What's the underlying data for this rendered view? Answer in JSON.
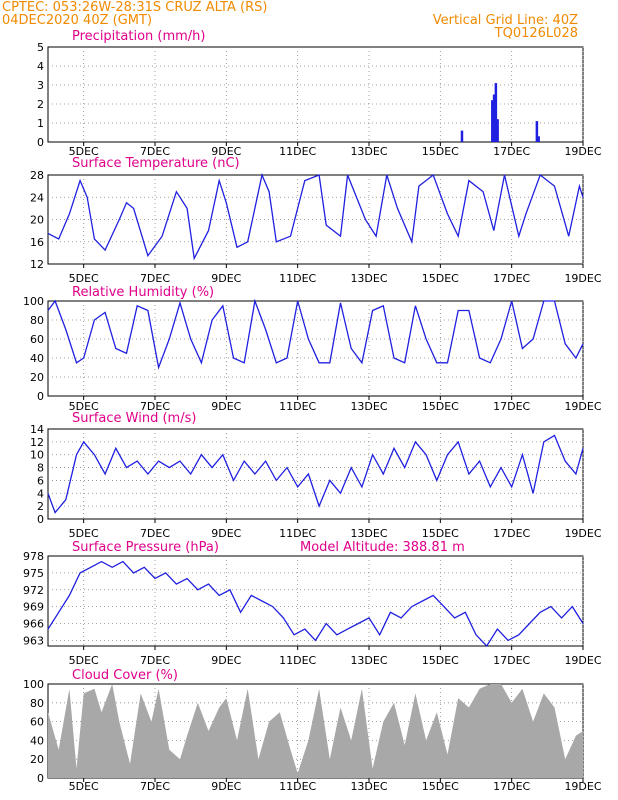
{
  "header": {
    "line1": "CPTEC:   053:26W-28:31S   CRUZ ALTA (RS)",
    "line2": "04DEC2020 40Z (GMT)",
    "right1": "Vertical Grid Line: 40Z",
    "right2": "TQ0126L028"
  },
  "x_tick_labels": [
    "5DEC",
    "7DEC",
    "9DEC",
    "11DEC",
    "13DEC",
    "15DEC",
    "17DEC",
    "19DEC"
  ],
  "chart_data": [
    {
      "type": "bar",
      "title": "Precipitation (mm/h)",
      "ylim": [
        0,
        5
      ],
      "yticks": [
        0,
        1,
        2,
        3,
        4,
        5
      ],
      "x_range_days": [
        4.0,
        19.0
      ],
      "x": [
        15.6,
        16.45,
        16.5,
        16.55,
        16.6,
        17.7,
        17.75
      ],
      "values": [
        0.6,
        2.2,
        2.5,
        3.1,
        1.2,
        1.1,
        0.3
      ],
      "color": "#2020e0"
    },
    {
      "type": "line",
      "title": "Surface Temperature (nC)",
      "ylim": [
        12,
        28
      ],
      "yticks": [
        12,
        16,
        20,
        24,
        28
      ],
      "x": [
        4.0,
        4.3,
        4.6,
        4.9,
        5.1,
        5.3,
        5.6,
        6.0,
        6.2,
        6.4,
        6.8,
        7.2,
        7.6,
        7.9,
        8.1,
        8.5,
        8.8,
        9.0,
        9.3,
        9.6,
        10.0,
        10.2,
        10.4,
        10.8,
        11.2,
        11.6,
        11.8,
        12.2,
        12.4,
        12.9,
        13.2,
        13.5,
        13.8,
        14.2,
        14.4,
        14.8,
        15.2,
        15.5,
        15.8,
        16.2,
        16.5,
        16.8,
        17.2,
        17.4,
        17.8,
        18.2,
        18.6,
        18.9,
        19.0
      ],
      "values": [
        17.5,
        16.5,
        21,
        27,
        24,
        16.5,
        14.5,
        20,
        23,
        22,
        13.5,
        17,
        25,
        22,
        13,
        18,
        27,
        23,
        15,
        16,
        28,
        25,
        16,
        17,
        27,
        28,
        19,
        17,
        28,
        20,
        17,
        28,
        22,
        16,
        26,
        28,
        21,
        17,
        27,
        25,
        18,
        28,
        17,
        21,
        28,
        26,
        17,
        26,
        24
      ],
      "color": "#2020e0"
    },
    {
      "type": "line",
      "title": "Relative Humidity (%)",
      "ylim": [
        0,
        100
      ],
      "yticks": [
        0,
        20,
        40,
        60,
        80,
        100
      ],
      "x": [
        4.0,
        4.2,
        4.5,
        4.8,
        5.0,
        5.3,
        5.6,
        5.9,
        6.2,
        6.5,
        6.8,
        7.1,
        7.4,
        7.7,
        8.0,
        8.3,
        8.6,
        8.9,
        9.2,
        9.5,
        9.8,
        10.1,
        10.4,
        10.7,
        11.0,
        11.3,
        11.6,
        11.9,
        12.2,
        12.5,
        12.8,
        13.1,
        13.4,
        13.7,
        14.0,
        14.3,
        14.6,
        14.9,
        15.2,
        15.5,
        15.8,
        16.1,
        16.4,
        16.7,
        17.0,
        17.3,
        17.6,
        17.9,
        18.2,
        18.5,
        18.8,
        19.0
      ],
      "values": [
        90,
        100,
        70,
        35,
        40,
        80,
        88,
        50,
        45,
        95,
        90,
        30,
        60,
        98,
        60,
        35,
        80,
        95,
        40,
        35,
        100,
        70,
        35,
        40,
        100,
        60,
        35,
        35,
        98,
        50,
        35,
        90,
        95,
        40,
        35,
        95,
        60,
        35,
        35,
        90,
        90,
        40,
        35,
        60,
        100,
        50,
        60,
        100,
        100,
        55,
        40,
        55
      ],
      "color": "#2020e0"
    },
    {
      "type": "line",
      "title": "Surface Wind (m/s)",
      "ylim": [
        0,
        14
      ],
      "yticks": [
        0,
        2,
        4,
        6,
        8,
        10,
        12,
        14
      ],
      "x": [
        4.0,
        4.2,
        4.5,
        4.8,
        5.0,
        5.3,
        5.6,
        5.9,
        6.2,
        6.5,
        6.8,
        7.1,
        7.4,
        7.7,
        8.0,
        8.3,
        8.6,
        8.9,
        9.2,
        9.5,
        9.8,
        10.1,
        10.4,
        10.7,
        11.0,
        11.3,
        11.6,
        11.9,
        12.2,
        12.5,
        12.8,
        13.1,
        13.4,
        13.7,
        14.0,
        14.3,
        14.6,
        14.9,
        15.2,
        15.5,
        15.8,
        16.1,
        16.4,
        16.7,
        17.0,
        17.3,
        17.6,
        17.9,
        18.2,
        18.5,
        18.8,
        19.0
      ],
      "values": [
        4,
        1,
        3,
        10,
        12,
        10,
        7,
        11,
        8,
        9,
        7,
        9,
        8,
        9,
        7,
        10,
        8,
        10,
        6,
        9,
        7,
        9,
        6,
        8,
        5,
        7,
        2,
        6,
        4,
        8,
        5,
        10,
        7,
        11,
        8,
        12,
        10,
        6,
        10,
        12,
        7,
        9,
        5,
        8,
        5,
        10,
        4,
        12,
        13,
        9,
        7,
        11
      ],
      "color": "#2020e0"
    },
    {
      "type": "line",
      "title": "Surface Pressure (hPa)",
      "annotation": "Model Altitude: 388.81 m",
      "ylim": [
        962,
        978
      ],
      "yticks": [
        963,
        966,
        969,
        972,
        975,
        978
      ],
      "x": [
        4.0,
        4.3,
        4.6,
        4.9,
        5.2,
        5.5,
        5.8,
        6.1,
        6.4,
        6.7,
        7.0,
        7.3,
        7.6,
        7.9,
        8.2,
        8.5,
        8.8,
        9.1,
        9.4,
        9.7,
        10.0,
        10.3,
        10.6,
        10.9,
        11.2,
        11.5,
        11.8,
        12.1,
        12.4,
        12.7,
        13.0,
        13.3,
        13.6,
        13.9,
        14.2,
        14.5,
        14.8,
        15.1,
        15.4,
        15.7,
        16.0,
        16.3,
        16.6,
        16.9,
        17.2,
        17.5,
        17.8,
        18.1,
        18.4,
        18.7,
        19.0
      ],
      "values": [
        965,
        968,
        971,
        975,
        976,
        977,
        976,
        977,
        975,
        976,
        974,
        975,
        973,
        974,
        972,
        973,
        971,
        972,
        968,
        971,
        970,
        969,
        967,
        964,
        965,
        963,
        966,
        964,
        965,
        966,
        967,
        964,
        968,
        967,
        969,
        970,
        971,
        969,
        967,
        968,
        964,
        962,
        965,
        963,
        964,
        966,
        968,
        969,
        967,
        969,
        966
      ],
      "color": "#2020e0"
    },
    {
      "type": "area",
      "title": "Cloud Cover (%)",
      "ylim": [
        0,
        100
      ],
      "yticks": [
        0,
        20,
        40,
        60,
        80,
        100
      ],
      "x": [
        4.0,
        4.3,
        4.6,
        4.8,
        5.0,
        5.3,
        5.5,
        5.8,
        6.0,
        6.3,
        6.6,
        6.9,
        7.1,
        7.4,
        7.7,
        7.9,
        8.2,
        8.5,
        8.8,
        9.0,
        9.3,
        9.6,
        9.9,
        10.2,
        10.5,
        10.8,
        11.0,
        11.3,
        11.6,
        11.9,
        12.2,
        12.5,
        12.8,
        13.1,
        13.4,
        13.7,
        14.0,
        14.3,
        14.6,
        14.9,
        15.2,
        15.5,
        15.8,
        16.1,
        16.4,
        16.7,
        17.0,
        17.3,
        17.6,
        17.9,
        18.2,
        18.5,
        18.8,
        19.0
      ],
      "values": [
        70,
        30,
        95,
        10,
        90,
        95,
        70,
        100,
        60,
        15,
        90,
        60,
        95,
        30,
        20,
        45,
        80,
        50,
        75,
        85,
        40,
        95,
        20,
        60,
        70,
        30,
        5,
        40,
        95,
        20,
        75,
        40,
        95,
        10,
        60,
        80,
        35,
        90,
        40,
        70,
        25,
        85,
        75,
        95,
        100,
        100,
        80,
        95,
        60,
        90,
        75,
        20,
        45,
        50
      ],
      "color": "#a8a8a8"
    }
  ]
}
